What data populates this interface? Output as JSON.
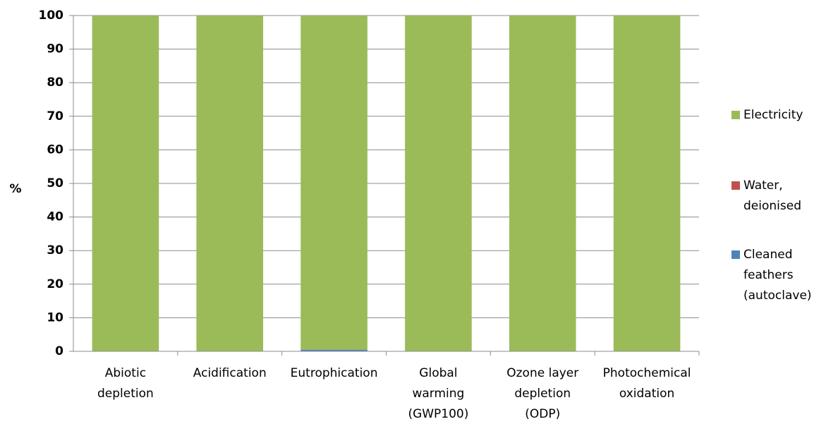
{
  "chart_data": {
    "type": "bar",
    "stacked": true,
    "title": "",
    "xlabel": "",
    "ylabel": "%",
    "ylim": [
      0,
      100
    ],
    "yticks": [
      0,
      10,
      20,
      30,
      40,
      50,
      60,
      70,
      80,
      90,
      100
    ],
    "grid": true,
    "legend_position": "right",
    "categories": [
      [
        "Abiotic",
        "depletion"
      ],
      [
        "Acidification"
      ],
      [
        "Eutrophication"
      ],
      [
        "Global",
        "warming",
        "(GWP100)"
      ],
      [
        "Ozone layer",
        "depletion",
        "(ODP)"
      ],
      [
        "Photochemical",
        "oxidation"
      ]
    ],
    "series": [
      {
        "name": "Cleaned feathers (autoclave)",
        "color": "#4f81bd",
        "values": [
          0.1,
          0,
          0.5,
          0,
          0,
          0
        ]
      },
      {
        "name": "Water, deionised",
        "color": "#c0504d",
        "values": [
          0,
          0,
          0,
          0,
          0,
          0
        ]
      },
      {
        "name": "Electricity",
        "color": "#9bbb59",
        "values": [
          99.9,
          100,
          99.5,
          100,
          100,
          100
        ]
      }
    ],
    "legend": [
      {
        "series": "Electricity",
        "lines": [
          "Electricity"
        ]
      },
      {
        "series": "Water, deionised",
        "lines": [
          "Water,",
          "deionised"
        ]
      },
      {
        "series": "Cleaned feathers (autoclave)",
        "lines": [
          "Cleaned",
          "feathers",
          "(autoclave)"
        ]
      }
    ]
  }
}
